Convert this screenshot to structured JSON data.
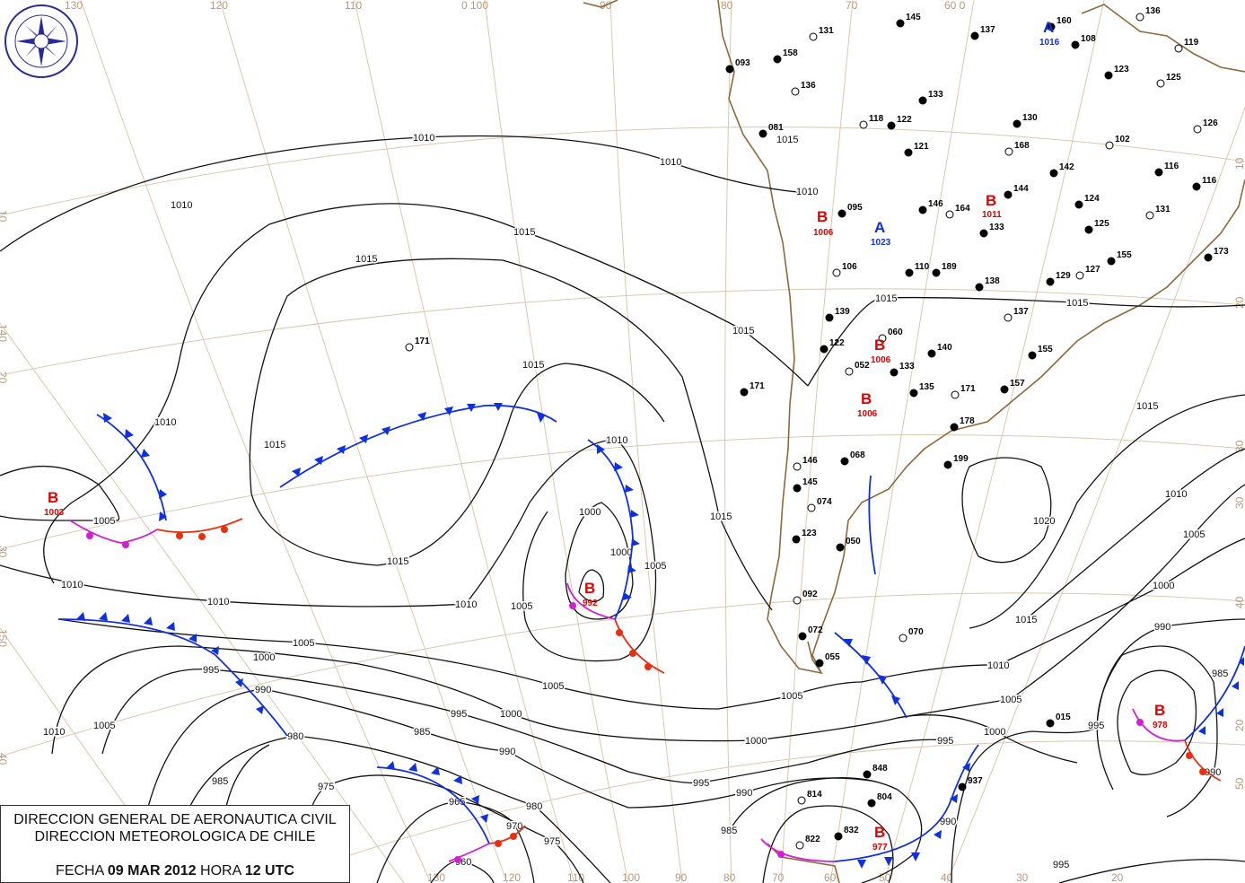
{
  "logo": {
    "text": "DIRECCION METEOROLOGICA CHILE"
  },
  "title": {
    "line1": "DIRECCION GENERAL DE AERONAUTICA CIVIL",
    "line2": "DIRECCION METEOROLOGICA DE CHILE",
    "date_label": "FECHA",
    "date": "09 MAR 2012",
    "hour_label": "HORA",
    "hour": "12 UTC"
  },
  "colors": {
    "low": "#e00000",
    "high": "#1030e0",
    "cold_front": "#1030e0",
    "warm_front": "#e83010",
    "occluded_front": "#d020d0",
    "graticule": "#d8c8b0",
    "coast": "#8b6a3a"
  },
  "graticule_labels": {
    "top": [
      "130",
      "120",
      "110",
      "0 100",
      "90",
      "80",
      "70",
      "60 0"
    ],
    "bottom": [
      "130",
      "120",
      "110",
      "100",
      "90",
      "80",
      "70",
      "60",
      "50",
      "40",
      "30",
      "20"
    ],
    "left": [
      "10",
      "140",
      "20",
      "30",
      "150",
      "40"
    ],
    "right": [
      "10",
      "20",
      "30",
      "30",
      "40",
      "20",
      "50"
    ]
  },
  "pressure_centers": [
    {
      "type": "B",
      "value": "1003"
    },
    {
      "type": "B",
      "value": "992"
    },
    {
      "type": "B",
      "value": "978"
    },
    {
      "type": "B",
      "value": "977"
    },
    {
      "type": "B",
      "value": "1006"
    },
    {
      "type": "A",
      "value": "1023"
    },
    {
      "type": "B",
      "value": "1011"
    },
    {
      "type": "B",
      "value": "1006"
    },
    {
      "type": "B",
      "value": "1006"
    },
    {
      "type": "A",
      "value": "1016"
    }
  ],
  "isobar_labels": [
    "1010",
    "1010",
    "1010",
    "1015",
    "1015",
    "1015",
    "1015",
    "1010",
    "1015",
    "1010",
    "1000",
    "1000",
    "1005",
    "1005",
    "1010",
    "1010",
    "1015",
    "1010",
    "1005",
    "1005",
    "1000",
    "995",
    "990",
    "1005",
    "995",
    "1000",
    "985",
    "980",
    "990",
    "975",
    "965",
    "980",
    "975",
    "970",
    "960",
    "995",
    "990",
    "1000",
    "1005",
    "985",
    "995",
    "1000",
    "1005",
    "1010",
    "1015",
    "1020",
    "1015",
    "1010",
    "1005",
    "1000",
    "990",
    "985",
    "995",
    "990",
    "995",
    "990",
    "1010",
    "1005",
    "985",
    "1015",
    "1010",
    "1015",
    "1015",
    "1015"
  ],
  "stations": [
    "131",
    "145",
    "160",
    "136",
    "137",
    "108",
    "119",
    "093",
    "158",
    "136",
    "133",
    "123",
    "125",
    "130",
    "081",
    "118",
    "122",
    "121",
    "168",
    "142",
    "144",
    "102",
    "095",
    "146",
    "164",
    "133",
    "124",
    "131",
    "125",
    "155",
    "127",
    "173",
    "139",
    "060",
    "122",
    "140",
    "052",
    "133",
    "135",
    "171",
    "178",
    "199",
    "146",
    "068",
    "145",
    "074",
    "123",
    "050",
    "092",
    "072",
    "055",
    "070",
    "015",
    "848",
    "814",
    "804",
    "832",
    "822",
    "937",
    "171",
    "171",
    "138",
    "189",
    "106",
    "110",
    "129",
    "137",
    "155",
    "157",
    "126",
    "116",
    "116"
  ]
}
